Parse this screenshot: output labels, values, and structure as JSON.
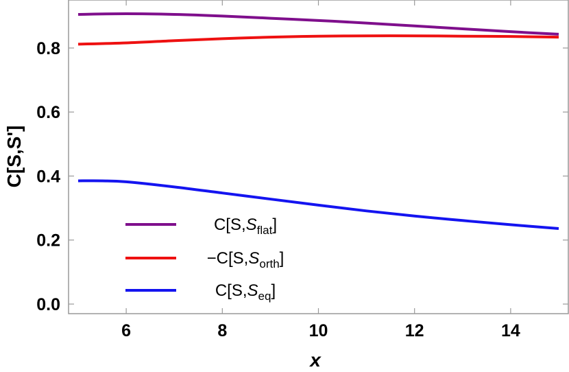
{
  "chart_data": {
    "type": "line",
    "xlabel": "x",
    "ylabel": "C[S,S']",
    "xlim": [
      4.8,
      15.2
    ],
    "ylim": [
      -0.03,
      0.95
    ],
    "xticks": [
      "6",
      "8",
      "10",
      "12",
      "14"
    ],
    "yticks": [
      "0.0",
      "0.2",
      "0.4",
      "0.6",
      "0.8"
    ],
    "grid": false,
    "frame": "box",
    "legend_position": "bottom-left",
    "series": [
      {
        "name": "C[S,S_flat]",
        "legend": {
          "prefix": "C[S,",
          "sym": "S",
          "sub": "flat",
          "suffix": "]"
        },
        "color": "#7f0f8c",
        "x": [
          5,
          6,
          7,
          8,
          9,
          10,
          11,
          12,
          13,
          14,
          15
        ],
        "y": [
          0.905,
          0.907,
          0.905,
          0.9,
          0.893,
          0.886,
          0.878,
          0.869,
          0.86,
          0.851,
          0.843
        ]
      },
      {
        "name": "-C[S,S_orth]",
        "legend": {
          "prefix": "−C[S,",
          "sym": "S",
          "sub": "orth",
          "suffix": "]"
        },
        "color": "#ee1111",
        "x": [
          5,
          6,
          7,
          8,
          9,
          10,
          11,
          12,
          13,
          14,
          15
        ],
        "y": [
          0.812,
          0.816,
          0.823,
          0.829,
          0.834,
          0.837,
          0.838,
          0.838,
          0.837,
          0.836,
          0.834
        ]
      },
      {
        "name": "C[S,S_eq]",
        "legend": {
          "prefix": "C[S,",
          "sym": "S",
          "sub": "eq",
          "suffix": "]"
        },
        "color": "#1414f0",
        "x": [
          5,
          5.5,
          6,
          7,
          8,
          9,
          10,
          11,
          12,
          13,
          14,
          15
        ],
        "y": [
          0.385,
          0.385,
          0.382,
          0.366,
          0.347,
          0.328,
          0.309,
          0.291,
          0.275,
          0.261,
          0.248,
          0.236
        ]
      }
    ]
  }
}
